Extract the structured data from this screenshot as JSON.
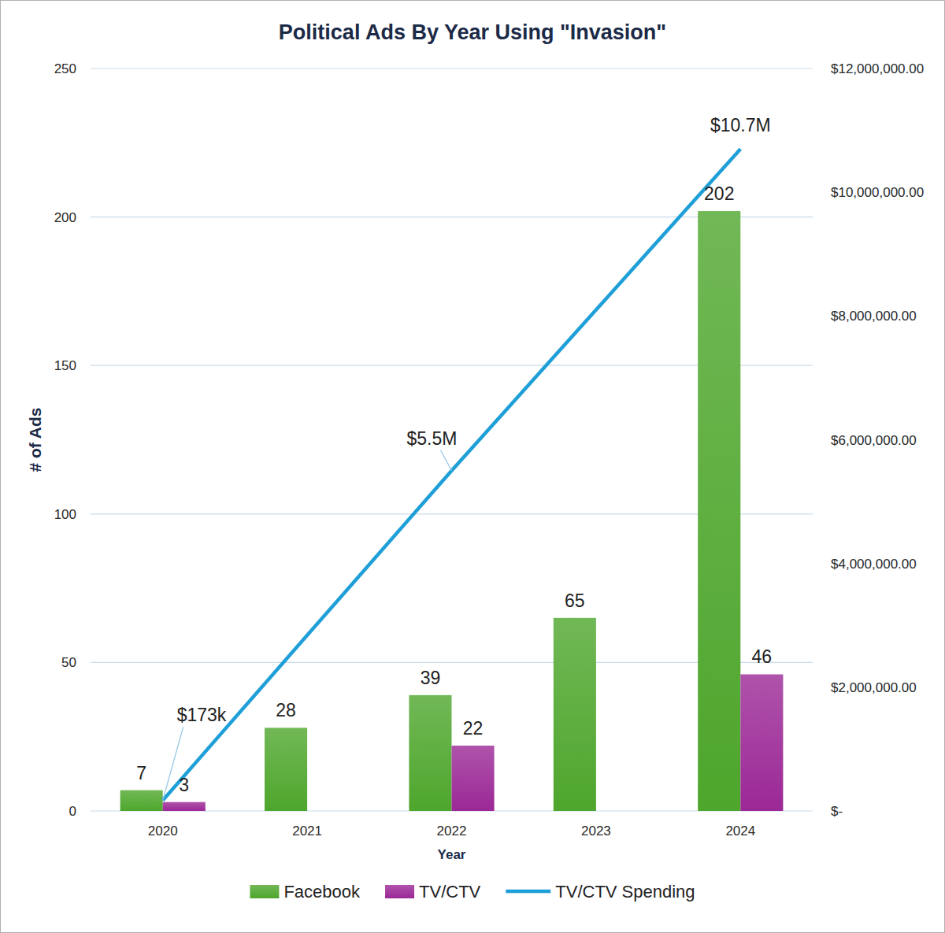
{
  "chart_data": {
    "type": "bar",
    "title": "Political Ads By Year Using \"Invasion\"",
    "x_label": "Year",
    "y_label": "# of Ads",
    "categories": [
      "2020",
      "2021",
      "2022",
      "2023",
      "2024"
    ],
    "ylim": [
      0,
      250
    ],
    "yticks": [
      0,
      50,
      100,
      150,
      200,
      250
    ],
    "y2lim": [
      0,
      12000000
    ],
    "y2ticks": [
      {
        "value": 0,
        "label": "$-"
      },
      {
        "value": 2000000,
        "label": "$2,000,000.00"
      },
      {
        "value": 4000000,
        "label": "$4,000,000.00"
      },
      {
        "value": 6000000,
        "label": "$6,000,000.00"
      },
      {
        "value": 8000000,
        "label": "$8,000,000.00"
      },
      {
        "value": 10000000,
        "label": "$10,000,000.00"
      },
      {
        "value": 12000000,
        "label": "$12,000,000.00"
      }
    ],
    "grid": true,
    "legend": "bottom",
    "data_labels": true,
    "series": [
      {
        "name": "Facebook",
        "type": "bar",
        "color": "#4ea62c",
        "values": [
          7,
          28,
          39,
          65,
          202
        ]
      },
      {
        "name": "TV/CTV",
        "type": "bar",
        "color": "#9b2896",
        "values": [
          3,
          null,
          22,
          null,
          46
        ]
      },
      {
        "name": "TV/CTV Spending",
        "type": "line",
        "axis": "y2",
        "color": "#1f9fd8",
        "values": [
          173000,
          2840000,
          5500000,
          8100000,
          10700000
        ],
        "value_labels": [
          "$173k",
          null,
          "$5.5M",
          null,
          "$10.7M"
        ]
      }
    ]
  }
}
